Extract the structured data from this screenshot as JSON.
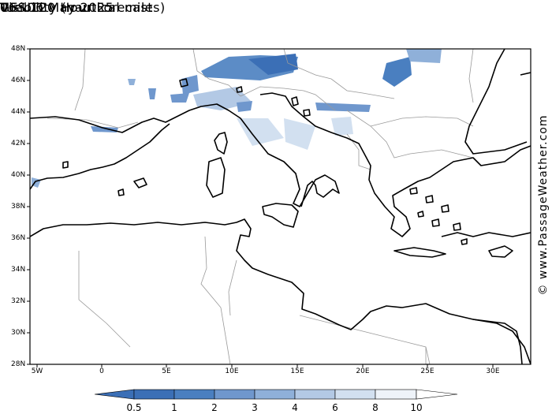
{
  "header": {
    "title": "Visibility (nautical miles)",
    "subtitle": "GFS 120 Hour Forecast",
    "date": "Tue 06 May 2025",
    "time": "06 UTC"
  },
  "credit": "© www.PassageWeather.com",
  "map": {
    "region": "Mediterranean",
    "lat_range": [
      28,
      48
    ],
    "lon_range": [
      -6,
      33
    ],
    "lat_labels": [
      "48N",
      "46N",
      "44N",
      "42N",
      "40N",
      "38N",
      "36N",
      "34N",
      "32N",
      "30N",
      "28N"
    ],
    "lon_labels": [
      "5W",
      "0",
      "5E",
      "10E",
      "15E",
      "20E",
      "25E",
      "30E"
    ],
    "land_color": "#ffffff",
    "coast_color": "#000000",
    "border_color": "#999999"
  },
  "colorbar": {
    "labels": [
      "0.5",
      "1",
      "2",
      "3",
      "4",
      "6",
      "8",
      "10"
    ],
    "colors": [
      "#3b6fb6",
      "#4a7fc0",
      "#6f97cd",
      "#8fb0d9",
      "#b3c9e5",
      "#d2e0f0",
      "#eef3f9",
      "#ffffff"
    ]
  }
}
